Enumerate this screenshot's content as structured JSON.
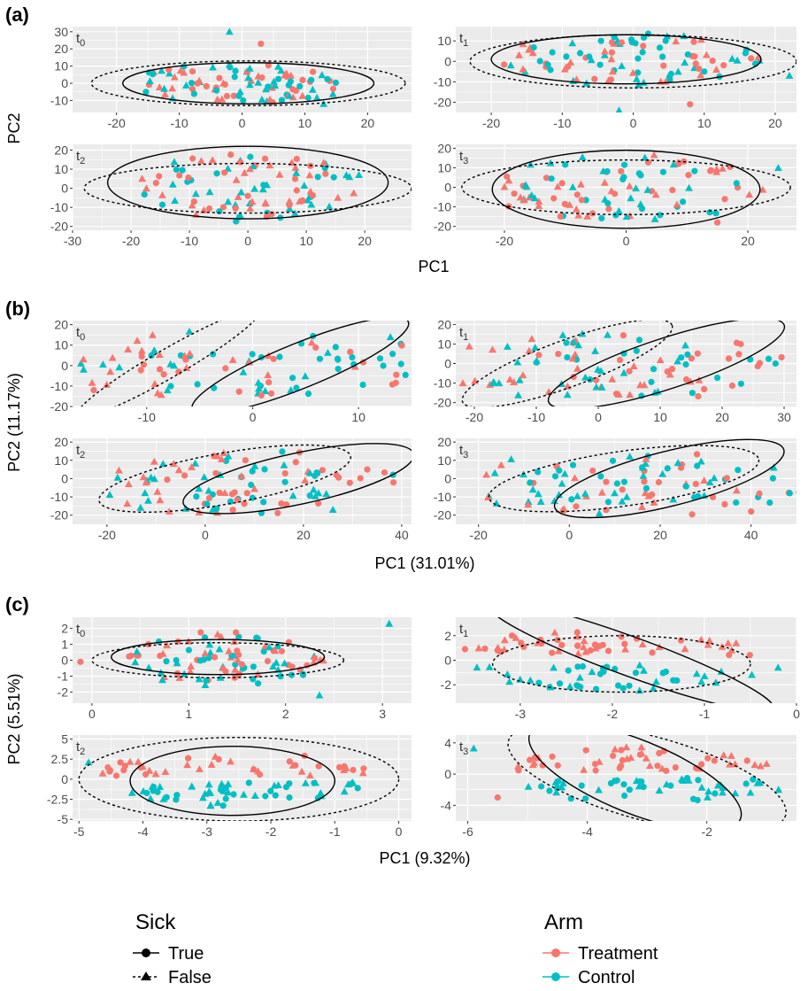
{
  "colors": {
    "treatment": "#F8766D",
    "control": "#00BFC4",
    "panel_bg": "#EBEBEB",
    "grid": "#FFFFFF",
    "tick_text": "#4D4D4D",
    "ellipse": "#000000"
  },
  "figure": {
    "panels": [
      {
        "label": "(a)",
        "xlabel": "PC1",
        "ylabel": "PC2",
        "subplots": [
          {
            "time": "t",
            "sub": "0",
            "xlim": [
              -27,
              27
            ],
            "ylim": [
              -17,
              33
            ],
            "xticks": [
              -20,
              -10,
              0,
              10,
              20
            ],
            "yticks": [
              -10,
              0,
              10,
              20,
              30
            ],
            "cloud": {
              "xmin": -18,
              "xmax": 17,
              "ymin": -12,
              "ymax": 12
            },
            "outliers": [
              [
                -2,
                30
              ],
              [
                3,
                23
              ],
              [
                13,
                -12
              ]
            ],
            "ellipse_true": {
              "cx": 1,
              "cy": 0,
              "rx": 20,
              "ry": 12,
              "angle": 0
            },
            "ellipse_false": {
              "cx": 1,
              "cy": 0,
              "rx": 25,
              "ry": 13,
              "angle": 0
            }
          },
          {
            "time": "t",
            "sub": "1",
            "xlim": [
              -25,
              23
            ],
            "ylim": [
              -25,
              17
            ],
            "xticks": [
              -20,
              -10,
              0,
              10,
              20
            ],
            "yticks": [
              -20,
              -10,
              0,
              10
            ],
            "cloud": {
              "xmin": -19,
              "xmax": 18,
              "ymin": -12,
              "ymax": 14
            },
            "outliers": [
              [
                -2,
                -24
              ],
              [
                8,
                -21
              ],
              [
                22,
                -7
              ]
            ],
            "ellipse_true": {
              "cx": -1,
              "cy": 1,
              "rx": 19,
              "ry": 12,
              "angle": 0
            },
            "ellipse_false": {
              "cx": 0,
              "cy": 0,
              "rx": 23,
              "ry": 13,
              "angle": 0
            }
          },
          {
            "time": "t",
            "sub": "2",
            "xlim": [
              -30,
              28
            ],
            "ylim": [
              -22,
              23
            ],
            "xticks": [
              -30,
              -20,
              -10,
              0,
              10,
              20
            ],
            "yticks": [
              -20,
              -10,
              0,
              10,
              20
            ],
            "cloud": {
              "xmin": -20,
              "xmax": 20,
              "ymin": -18,
              "ymax": 18
            },
            "outliers": [
              [
                19,
                7
              ]
            ],
            "ellipse_true": {
              "cx": 0,
              "cy": 3,
              "rx": 24,
              "ry": 19,
              "angle": 0
            },
            "ellipse_false": {
              "cx": 0,
              "cy": 0,
              "rx": 28,
              "ry": 13,
              "angle": 0
            }
          },
          {
            "time": "t",
            "sub": "3",
            "xlim": [
              -28,
              28
            ],
            "ylim": [
              -22,
              22
            ],
            "xticks": [
              -20,
              0,
              20
            ],
            "yticks": [
              -20,
              -10,
              0,
              10,
              20
            ],
            "cloud": {
              "xmin": -24,
              "xmax": 23,
              "ymin": -18,
              "ymax": 17
            },
            "outliers": [
              [
                25,
                10
              ],
              [
                15,
                -18
              ]
            ],
            "ellipse_true": {
              "cx": 0,
              "cy": -1,
              "rx": 22,
              "ry": 20,
              "angle": 0
            },
            "ellipse_false": {
              "cx": 0,
              "cy": 0,
              "rx": 27,
              "ry": 14,
              "angle": 0
            }
          }
        ]
      },
      {
        "label": "(b)",
        "xlabel": "PC1 (31.01%)",
        "ylabel": "PC2 (11.17%)",
        "subplots": [
          {
            "time": "t",
            "sub": "0",
            "xlim": [
              -17,
              15
            ],
            "ylim": [
              -20,
              22
            ],
            "xticks": [
              -10,
              0,
              10
            ],
            "yticks": [
              -20,
              -10,
              0,
              10,
              20
            ],
            "cloud": {
              "xmin": -16,
              "xmax": 14,
              "ymin": -15,
              "ymax": 17
            },
            "outliers": [
              [
                13,
                14
              ],
              [
                -15,
                -12
              ]
            ],
            "ellipse_true": {
              "cx": 4.5,
              "cy": 0,
              "rx": 11,
              "ry": 11,
              "angle": 22
            },
            "ellipse_false": {
              "cx": -8,
              "cy": 1,
              "rx": 10,
              "ry": 7,
              "angle": 30
            }
          },
          {
            "time": "t",
            "sub": "1",
            "xlim": [
              -23,
              32
            ],
            "ylim": [
              -22,
              22
            ],
            "xticks": [
              -20,
              -10,
              0,
              10,
              20,
              30
            ],
            "yticks": [
              -20,
              -10,
              0,
              10,
              20
            ],
            "cloud": {
              "xmin": -20,
              "xmax": 25,
              "ymin": -18,
              "ymax": 16
            },
            "outliers": [
              [
                -17,
                -10
              ],
              [
                23,
                10
              ]
            ],
            "ellipse_true": {
              "cx": 11,
              "cy": 0,
              "rx": 20,
              "ry": 13,
              "angle": 18
            },
            "ellipse_false": {
              "cx": -5,
              "cy": 0,
              "rx": 18,
              "ry": 12,
              "angle": 20
            }
          },
          {
            "time": "t",
            "sub": "2",
            "xlim": [
              -27,
              42
            ],
            "ylim": [
              -25,
              22
            ],
            "xticks": [
              -20,
              0,
              20,
              40
            ],
            "yticks": [
              -20,
              -10,
              0,
              10,
              20
            ],
            "cloud": {
              "xmin": -16,
              "xmax": 33,
              "ymin": -20,
              "ymax": 15
            },
            "outliers": [
              [
                26,
                -17
              ],
              [
                33,
                5
              ]
            ],
            "ellipse_true": {
              "cx": 19,
              "cy": 0,
              "rx": 24,
              "ry": 14,
              "angle": 12
            },
            "ellipse_false": {
              "cx": 4,
              "cy": 0,
              "rx": 26,
              "ry": 14,
              "angle": 10
            }
          },
          {
            "time": "t",
            "sub": "3",
            "xlim": [
              -25,
              50
            ],
            "ylim": [
              -25,
              22
            ],
            "xticks": [
              -20,
              0,
              20,
              40
            ],
            "yticks": [
              -20,
              -10,
              0,
              10,
              20
            ],
            "cloud": {
              "xmin": -17,
              "xmax": 46,
              "ymin": -20,
              "ymax": 15
            },
            "outliers": [
              [
                45,
                6
              ],
              [
                40,
                -18
              ]
            ],
            "ellipse_true": {
              "cx": 22,
              "cy": 0,
              "rx": 26,
              "ry": 15,
              "angle": 14
            },
            "ellipse_false": {
              "cx": 12,
              "cy": 0,
              "rx": 30,
              "ry": 15,
              "angle": 8
            }
          }
        ]
      },
      {
        "label": "(c)",
        "xlabel": "PC1 (9.32%)",
        "ylabel": "PC2 (5.51%)",
        "subplots": [
          {
            "time": "t",
            "sub": "0",
            "xlim": [
              -0.2,
              3.3
            ],
            "ylim": [
              -2.7,
              2.7
            ],
            "xticks": [
              0,
              1,
              2,
              3
            ],
            "yticks": [
              -2,
              -1,
              0,
              1,
              2
            ],
            "cloud": {
              "xmin": 0.3,
              "xmax": 2.4,
              "ymin": -1.6,
              "ymax": 1.8
            },
            "outliers": [
              [
                3.07,
                2.3
              ],
              [
                -0.12,
                -0.1
              ],
              [
                2.35,
                -2.2
              ]
            ],
            "ellipse_true": {
              "cx": 1.3,
              "cy": 0.2,
              "rx": 1.1,
              "ry": 1.1,
              "angle": 0
            },
            "ellipse_false": {
              "cx": 1.3,
              "cy": 0,
              "rx": 1.3,
              "ry": 1.1,
              "angle": 0
            }
          },
          {
            "time": "t",
            "sub": "1",
            "xlim": [
              -3.7,
              0
            ],
            "ylim": [
              -3.5,
              3.5
            ],
            "xticks": [
              -3,
              -2,
              -1,
              0
            ],
            "yticks": [
              -2,
              0,
              2
            ],
            "cloud": {
              "xmin": -3.6,
              "xmax": -0.3,
              "ymin": -2.7,
              "ymax": 2.9
            },
            "outliers": [
              [
                -0.2,
                -0.6
              ],
              [
                -3.6,
                0.9
              ]
            ],
            "ellipse_true": {
              "cx": -1.8,
              "cy": 0.3,
              "rx": 1.65,
              "ry": 1.6,
              "angle": -20
            },
            "ellipse_false": {
              "cx": -1.9,
              "cy": -0.3,
              "rx": 1.4,
              "ry": 2.3,
              "angle": 0
            }
          },
          {
            "time": "t",
            "sub": "2",
            "xlim": [
              -5.1,
              0.2
            ],
            "ylim": [
              -5.2,
              5.5
            ],
            "xticks": [
              -5,
              -4,
              -3,
              -2,
              -1,
              0
            ],
            "yticks": [
              -5.0,
              -2.5,
              0.0,
              2.5,
              5.0
            ],
            "cloud": {
              "xmin": -4.8,
              "xmax": -0.4,
              "ymin": -3.8,
              "ymax": 3.2
            },
            "outliers": [
              [
                -4.85,
                2.1
              ]
            ],
            "ellipse_true": {
              "cx": -2.6,
              "cy": -0.2,
              "rx": 1.6,
              "ry": 4.3,
              "angle": 0
            },
            "ellipse_false": {
              "cx": -2.5,
              "cy": 0,
              "rx": 2.5,
              "ry": 5.2,
              "angle": 0
            }
          },
          {
            "time": "t",
            "sub": "3",
            "xlim": [
              -6.2,
              -0.5
            ],
            "ylim": [
              -6,
              5
            ],
            "xticks": [
              -6,
              -4,
              -2
            ],
            "yticks": [
              -4,
              0,
              4
            ],
            "cloud": {
              "xmin": -5.2,
              "xmax": -0.8,
              "ymin": -4.2,
              "ymax": 4.2
            },
            "outliers": [
              [
                -5.9,
                3.3
              ],
              [
                -5.5,
                -3
              ],
              [
                -0.8,
                -2
              ]
            ],
            "ellipse_true": {
              "cx": -3.2,
              "cy": -0.3,
              "rx": 1.9,
              "ry": 4.7,
              "angle": -22
            },
            "ellipse_false": {
              "cx": -3,
              "cy": -0.5,
              "rx": 2.4,
              "ry": 5.4,
              "angle": -15
            }
          }
        ]
      }
    ]
  },
  "legend": {
    "sick": {
      "title": "Sick",
      "items": [
        {
          "label": "True",
          "shape": "circle",
          "line": "solid"
        },
        {
          "label": "False",
          "shape": "triangle",
          "line": "dashed"
        }
      ]
    },
    "arm": {
      "title": "Arm",
      "items": [
        {
          "label": "Treatment",
          "color": "#F8766D"
        },
        {
          "label": "Control",
          "color": "#00BFC4"
        }
      ]
    }
  },
  "chart_data": {
    "type": "scatter",
    "title": "",
    "facets": [
      "t0",
      "t1",
      "t2",
      "t3"
    ],
    "series": [
      {
        "name": "Treatment / Sick=True",
        "shape": "circle",
        "color": "#F8766D"
      },
      {
        "name": "Treatment / Sick=False",
        "shape": "triangle",
        "color": "#F8766D"
      },
      {
        "name": "Control / Sick=True",
        "shape": "circle",
        "color": "#00BFC4"
      },
      {
        "name": "Control / Sick=False",
        "shape": "triangle",
        "color": "#00BFC4"
      }
    ],
    "ellipses": "95% confidence ellipses per Sick group (solid = True, dashed = False)",
    "grid": true,
    "legend_position": "bottom"
  }
}
